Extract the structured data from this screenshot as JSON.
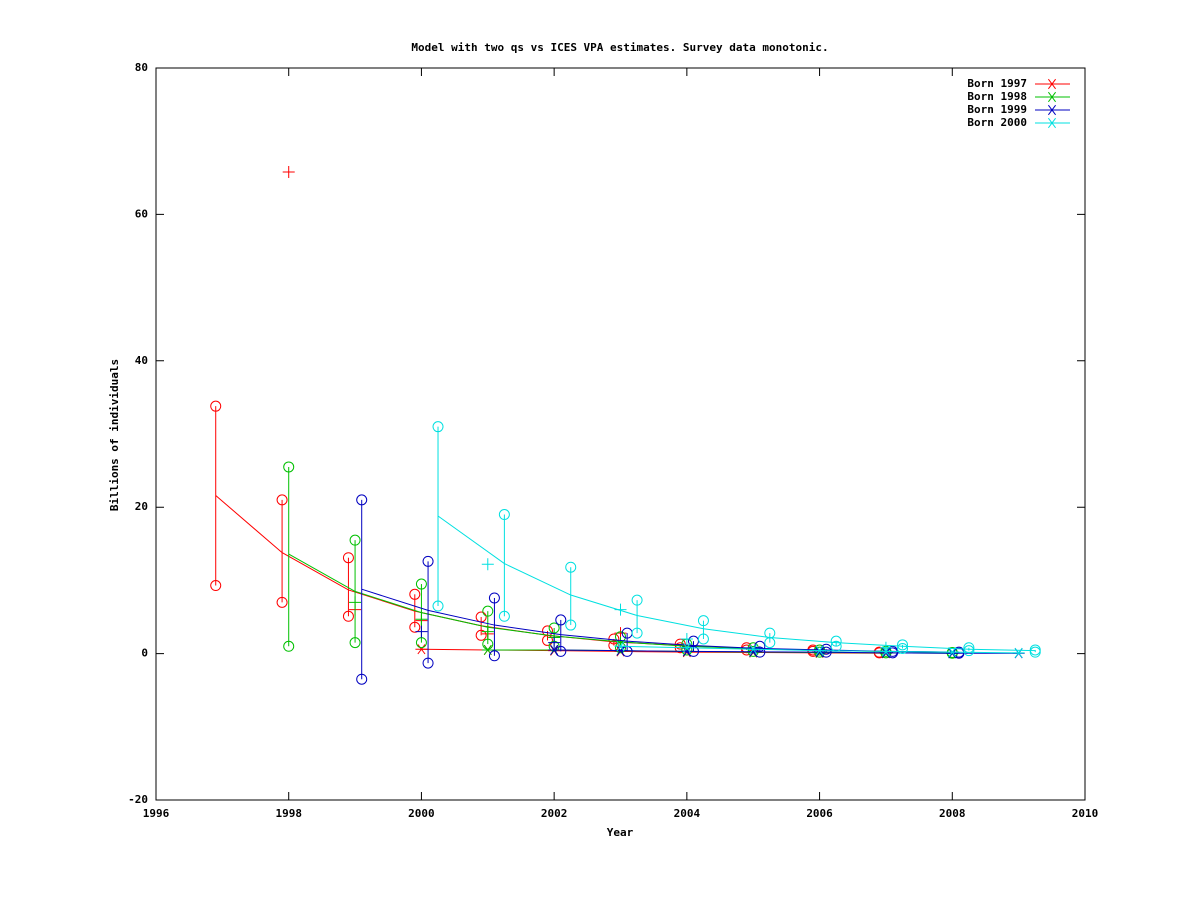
{
  "chart_data": {
    "type": "line",
    "title": "Model with two qs vs ICES VPA estimates. Survey data monotonic.",
    "x_label": "Year",
    "y_label": "Billions of individuals",
    "xlim": [
      1996,
      2010
    ],
    "xticks": [
      1996,
      1998,
      2000,
      2002,
      2004,
      2006,
      2008,
      2010
    ],
    "ylim": [
      -20,
      80
    ],
    "yticks": [
      -20,
      0,
      20,
      40,
      60,
      80
    ],
    "legend": "top-right",
    "series": [
      {
        "name": "Born 1997",
        "color": "#ff0000",
        "model": {
          "x": [
            1996.9,
            1997.9,
            1998.9,
            1999.9,
            2000.9,
            2001.9,
            2002.9,
            2003.9,
            2004.9,
            2005.9,
            2006.9
          ],
          "values": [
            21.6,
            13.8,
            8.7,
            5.8,
            3.8,
            2.5,
            1.6,
            1.1,
            0.7,
            0.5,
            0.3
          ]
        },
        "survey": {
          "x": [
            1996.9,
            1997.9,
            1998.9,
            1999.9,
            2000.9,
            2001.9,
            2002.9,
            2003.9,
            2004.9,
            2005.9,
            2006.9
          ],
          "low": [
            9.3,
            7.0,
            5.1,
            3.6,
            2.5,
            1.8,
            1.1,
            0.8,
            0.5,
            0.3,
            0.1
          ],
          "high": [
            33.8,
            21.0,
            13.1,
            8.1,
            5.0,
            3.1,
            2.0,
            1.3,
            0.8,
            0.5,
            0.2
          ]
        },
        "vpa": {
          "x": [
            1998,
            1999,
            2000,
            2001,
            2003
          ],
          "values": [
            65.8,
            6.0,
            4.5,
            2.7,
            2.8
          ]
        },
        "catch": {
          "x": [
            2000,
            2001,
            2002,
            2003,
            2004,
            2005,
            2006,
            2007
          ],
          "values": [
            0.6,
            0.5,
            0.4,
            0.3,
            0.2,
            0.15,
            0.1,
            0.05
          ]
        }
      },
      {
        "name": "Born 1998",
        "color": "#00c000",
        "model": {
          "x": [
            1998,
            1999,
            2000,
            2001,
            2002,
            2003,
            2004,
            2005,
            2006,
            2007,
            2008
          ],
          "values": [
            13.6,
            8.5,
            5.6,
            3.6,
            2.4,
            1.6,
            1.0,
            0.7,
            0.4,
            0.3,
            0.2
          ]
        },
        "survey": {
          "x": [
            1998,
            1999,
            2000,
            2001,
            2002,
            2003,
            2004,
            2005,
            2006,
            2007,
            2008
          ],
          "low": [
            1.0,
            1.5,
            1.5,
            1.3,
            1.0,
            0.8,
            0.5,
            0.3,
            0.2,
            0.1,
            0.05
          ],
          "high": [
            25.5,
            15.5,
            9.5,
            5.8,
            3.5,
            2.3,
            1.3,
            0.8,
            0.5,
            0.3,
            0.15
          ]
        },
        "vpa": {
          "x": [
            1999,
            2000,
            2001,
            2002
          ],
          "values": [
            7.0,
            4.7,
            3.0,
            2.2
          ]
        },
        "catch": {
          "x": [
            2001,
            2002,
            2003,
            2004,
            2005,
            2006,
            2007,
            2008
          ],
          "values": [
            0.5,
            0.5,
            0.4,
            0.3,
            0.2,
            0.15,
            0.1,
            0.05
          ]
        }
      },
      {
        "name": "Born 1999",
        "color": "#0000c0",
        "model": {
          "x": [
            1999.1,
            2000.1,
            2001.1,
            2002.1,
            2003.1,
            2004.1,
            2005.1,
            2006.1,
            2007.1,
            2008.1
          ],
          "values": [
            8.8,
            5.9,
            3.9,
            2.6,
            1.7,
            1.1,
            0.7,
            0.5,
            0.3,
            0.2
          ]
        },
        "survey": {
          "x": [
            1999.1,
            2000.1,
            2001.1,
            2002.1,
            2003.1,
            2004.1,
            2005.1,
            2006.1,
            2007.1,
            2008.1
          ],
          "low": [
            -3.5,
            -1.3,
            -0.3,
            0.3,
            0.3,
            0.3,
            0.2,
            0.2,
            0.1,
            0.05
          ],
          "high": [
            21.0,
            12.6,
            7.6,
            4.6,
            2.8,
            1.7,
            1.0,
            0.6,
            0.3,
            0.2
          ]
        },
        "vpa": {
          "x": [
            2000,
            2002
          ],
          "values": [
            3.0,
            1.5
          ]
        },
        "catch": {
          "x": [
            2002,
            2003,
            2004,
            2005,
            2006,
            2007,
            2008,
            2009
          ],
          "values": [
            0.5,
            0.4,
            0.3,
            0.25,
            0.2,
            0.1,
            0.05,
            0.05
          ]
        }
      },
      {
        "name": "Born 2000",
        "color": "#00e0e0",
        "model": {
          "x": [
            2000.25,
            2001.25,
            2002.25,
            2003.25,
            2004.25,
            2005.25,
            2006.25,
            2007.25,
            2008.25,
            2009.25
          ],
          "values": [
            18.8,
            12.3,
            8.0,
            5.2,
            3.4,
            2.2,
            1.5,
            1.0,
            0.6,
            0.4
          ]
        },
        "survey": {
          "x": [
            2000.25,
            2001.25,
            2002.25,
            2003.25,
            2004.25,
            2005.25,
            2006.25,
            2007.25,
            2008.25,
            2009.25
          ],
          "low": [
            6.5,
            5.1,
            3.9,
            2.8,
            2.0,
            1.5,
            1.0,
            0.7,
            0.4,
            0.2
          ],
          "high": [
            31.0,
            19.0,
            11.8,
            7.3,
            4.5,
            2.8,
            1.7,
            1.2,
            0.8,
            0.5
          ]
        },
        "vpa": {
          "x": [
            2001,
            2003,
            2004,
            2007
          ],
          "values": [
            12.2,
            6.0,
            2.0,
            0.8
          ]
        },
        "catch": {
          "x": [
            2003,
            2004,
            2005,
            2006,
            2007,
            2008,
            2009
          ],
          "values": [
            1.0,
            0.8,
            0.6,
            0.4,
            0.3,
            0.2,
            0.1
          ]
        }
      }
    ]
  }
}
